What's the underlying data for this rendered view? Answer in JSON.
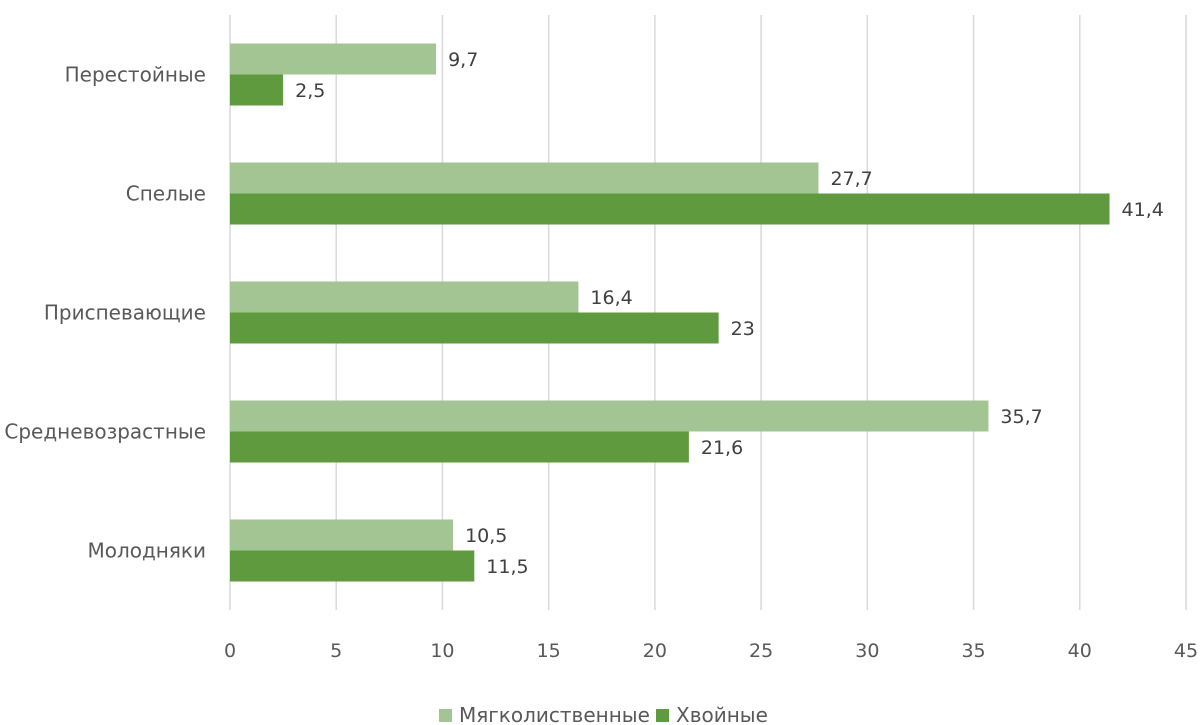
{
  "chart_data": {
    "type": "bar",
    "orientation": "horizontal",
    "categories": [
      "Перестойные",
      "Спелые",
      "Приспевающие",
      "Средневозрастные",
      "Молодняки"
    ],
    "series": [
      {
        "name": "Мягколиственные",
        "values": [
          9.7,
          27.7,
          16.4,
          35.7,
          10.5
        ],
        "color": "#a3c593"
      },
      {
        "name": "Хвойные",
        "values": [
          2.5,
          41.4,
          23,
          21.6,
          11.5
        ],
        "color": "#5f9a3e"
      }
    ],
    "data_labels": [
      [
        "9,7",
        "27,7",
        "16,4",
        "35,7",
        "10,5"
      ],
      [
        "2,5",
        "41,4",
        "23",
        "21,6",
        "11,5"
      ]
    ],
    "xlim": [
      0,
      45
    ],
    "xticks": [
      0,
      5,
      10,
      15,
      20,
      25,
      30,
      35,
      40,
      45
    ],
    "grid": true,
    "legend_position": "bottom"
  }
}
